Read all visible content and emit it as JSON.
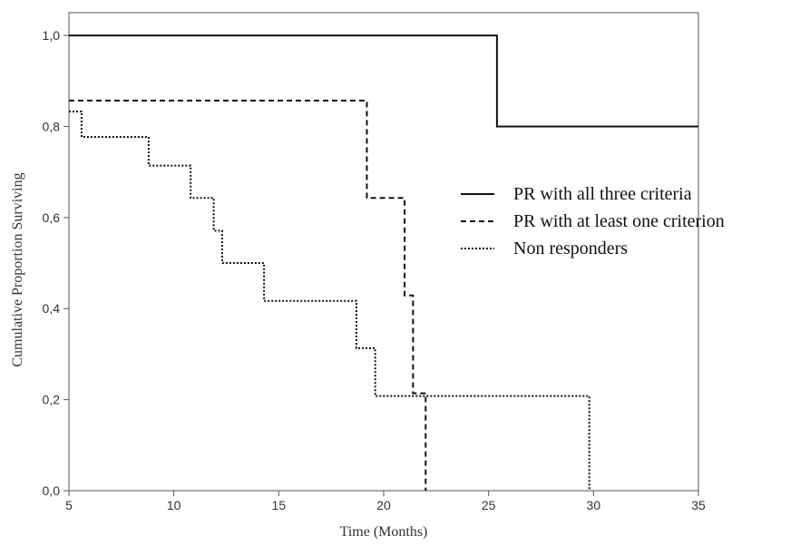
{
  "chart_data": {
    "type": "line",
    "title": "",
    "xlabel": "Time (Months)",
    "ylabel": "Cumulative Proportion Surviving",
    "xlim": [
      5,
      35
    ],
    "ylim": [
      0,
      1.05
    ],
    "xticks": [
      5,
      10,
      15,
      20,
      25,
      30,
      35
    ],
    "xtick_labels": [
      "5",
      "10",
      "15",
      "20",
      "25",
      "30",
      "35"
    ],
    "yticks": [
      0,
      0.2,
      0.4,
      0.6,
      0.8,
      1.0
    ],
    "ytick_labels": [
      "0,0",
      "0,2",
      "0,4",
      "0,6",
      "0,8",
      "1,0"
    ],
    "grid": false,
    "legend_position": "right",
    "step": true,
    "series": [
      {
        "name": "PR with all three criteria",
        "style": "solid",
        "color": "#111111",
        "x": [
          5,
          25.4,
          25.4,
          35
        ],
        "y": [
          1.0,
          1.0,
          0.8,
          0.8
        ]
      },
      {
        "name": "PR with at least one criterion",
        "style": "dashed",
        "color": "#111111",
        "x": [
          5,
          19.2,
          19.2,
          21.0,
          21.0,
          21.4,
          21.4,
          22.0,
          22.0
        ],
        "y": [
          0.857,
          0.857,
          0.643,
          0.643,
          0.429,
          0.429,
          0.214,
          0.214,
          0.0
        ]
      },
      {
        "name": "Non responders",
        "style": "dotted",
        "color": "#111111",
        "x": [
          5,
          5.6,
          5.6,
          8.8,
          8.8,
          10.8,
          10.8,
          11.9,
          11.9,
          12.3,
          12.3,
          14.3,
          14.3,
          18.7,
          18.7,
          19.6,
          19.6,
          29.8,
          29.8
        ],
        "y": [
          0.833,
          0.833,
          0.777,
          0.777,
          0.714,
          0.714,
          0.643,
          0.643,
          0.571,
          0.571,
          0.5,
          0.5,
          0.417,
          0.417,
          0.313,
          0.313,
          0.208,
          0.208,
          0.0
        ]
      }
    ]
  }
}
